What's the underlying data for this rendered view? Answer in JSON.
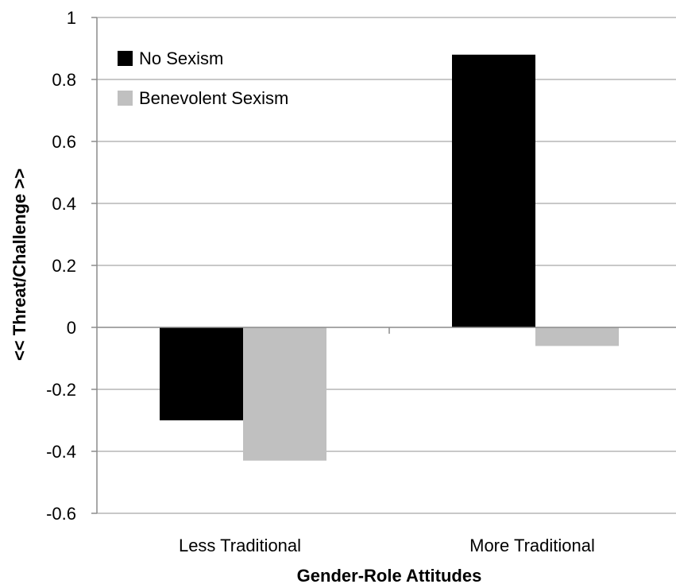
{
  "chart_data": {
    "type": "bar",
    "categories": [
      "Less Traditional",
      "More Traditional"
    ],
    "series": [
      {
        "name": "No Sexism",
        "values": [
          -0.3,
          0.88
        ],
        "color": "#000000"
      },
      {
        "name": "Benevolent Sexism",
        "values": [
          -0.43,
          -0.06
        ],
        "color": "#c0c0c0"
      }
    ],
    "xlabel": "Gender-Role Attitudes",
    "ylabel": "<<  Threat/Challenge  >>",
    "ylim": [
      -0.6,
      1
    ],
    "yticks": [
      1,
      0.8,
      0.6,
      0.4,
      0.2,
      0,
      -0.2,
      -0.4,
      -0.6
    ],
    "ytick_labels": [
      "1",
      "0.8",
      "0.6",
      "0.4",
      "0.2",
      "0",
      "-0.2",
      "-0.4",
      "-0.6"
    ],
    "grid": true,
    "legend_position": "top-left"
  }
}
